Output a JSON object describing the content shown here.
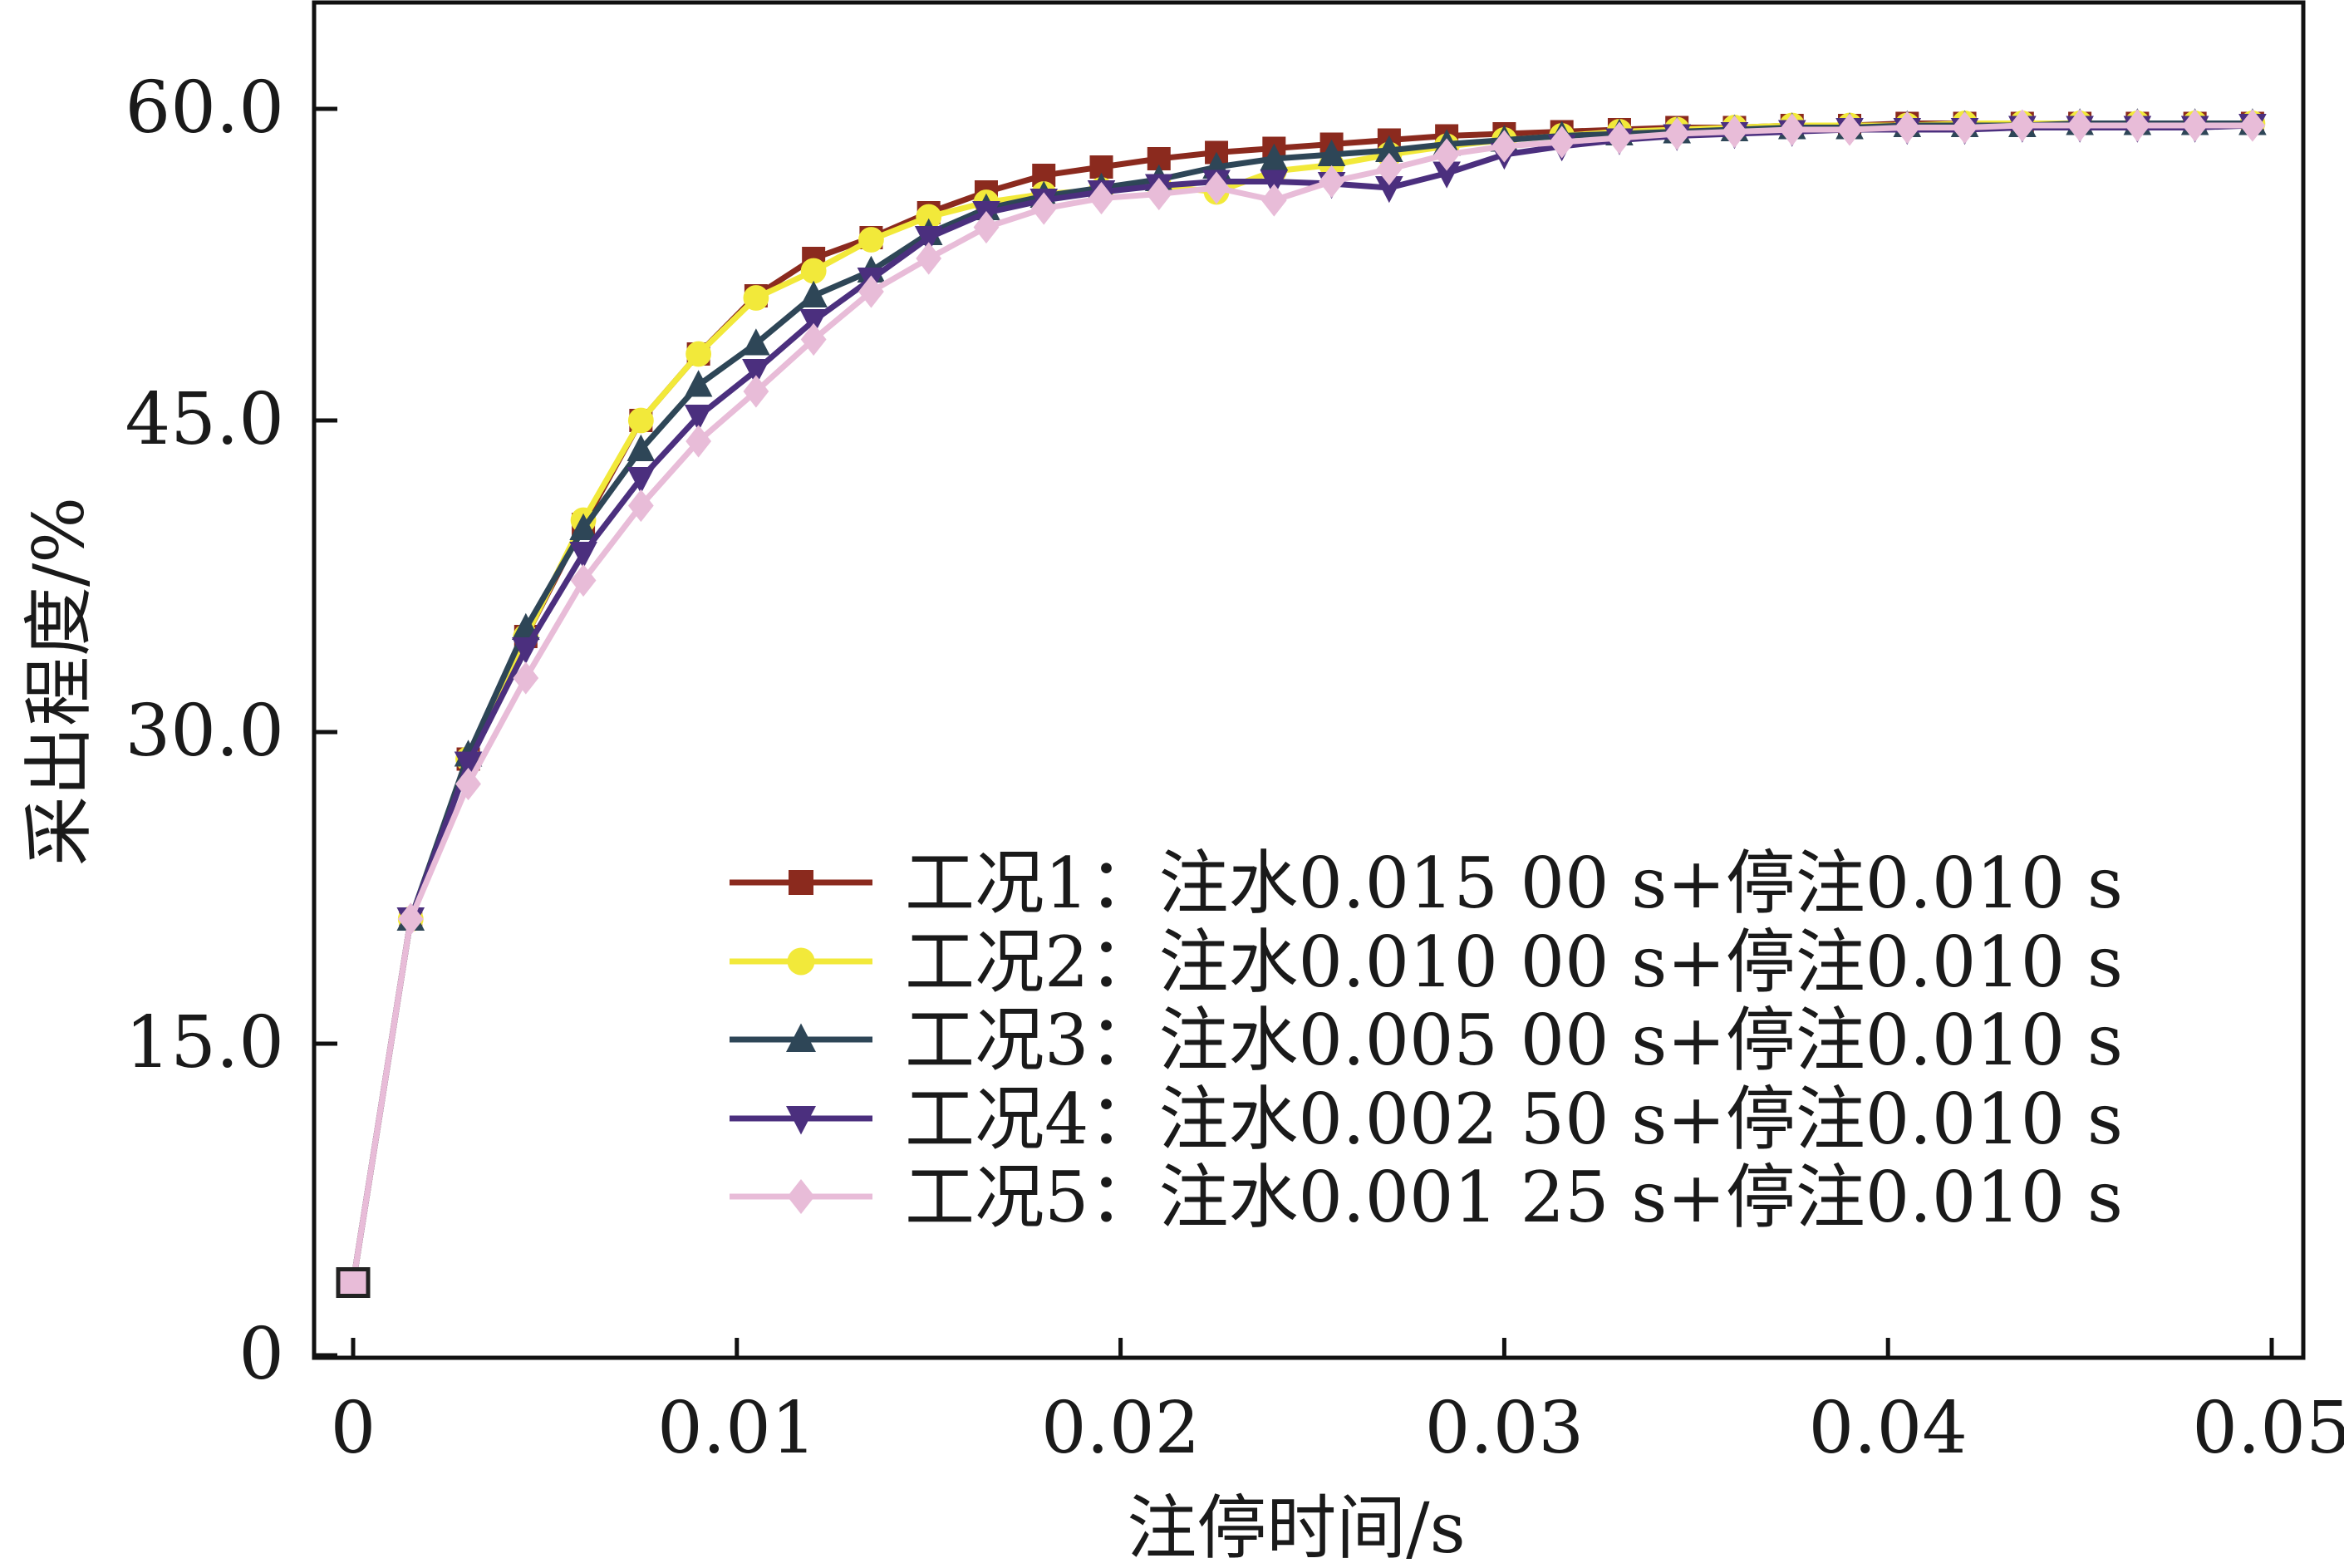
{
  "chart_data": {
    "type": "line",
    "title": "",
    "xlabel": "注停时间/s",
    "ylabel": "采出程度/%",
    "xlim": [
      -0.001,
      0.0505
    ],
    "ylim": [
      0,
      65.2
    ],
    "xticks": [
      0,
      0.01,
      0.02,
      0.03,
      0.04,
      0.05
    ],
    "xtick_labels": [
      "0",
      "0.01",
      "0.02",
      "0.03",
      "0.04",
      "0.05"
    ],
    "yticks": [
      0,
      15,
      30,
      45,
      60
    ],
    "ytick_labels": [
      "0",
      "15.0",
      "30.0",
      "45.0",
      "60.0"
    ],
    "grid": false,
    "legend_position": "bottom-right",
    "x": [
      0,
      0.0015,
      0.003,
      0.0045,
      0.006,
      0.0075,
      0.009,
      0.0105,
      0.012,
      0.0135,
      0.015,
      0.0165,
      0.018,
      0.0195,
      0.021,
      0.0225,
      0.024,
      0.0255,
      0.027,
      0.0285,
      0.03,
      0.0315,
      0.033,
      0.0345,
      0.036,
      0.0375,
      0.039,
      0.0405,
      0.042,
      0.0435,
      0.045,
      0.0465,
      0.048,
      0.0495
    ],
    "series": [
      {
        "name": "工况1：注水0.015 00 s+停注0.010 s",
        "color": "#8b2a1e",
        "marker": "square",
        "values": [
          3.5,
          21,
          28.7,
          34.6,
          40,
          45,
          48.2,
          51,
          52.8,
          53.8,
          55,
          56,
          56.8,
          57.2,
          57.6,
          57.9,
          58.1,
          58.3,
          58.5,
          58.7,
          58.8,
          58.9,
          59.0,
          59.1,
          59.1,
          59.2,
          59.2,
          59.3,
          59.3,
          59.3,
          59.3,
          59.3,
          59.3,
          59.3
        ]
      },
      {
        "name": "工况2：注水0.010 00 s+停注0.010 s",
        "color": "#f2e93a",
        "marker": "circle",
        "values": [
          3.5,
          21,
          28.7,
          34.6,
          40.2,
          45,
          48.2,
          50.9,
          52.2,
          53.7,
          54.8,
          55.5,
          55.9,
          56.1,
          56.3,
          56.0,
          57.0,
          57.3,
          57.8,
          58.2,
          58.5,
          58.7,
          58.9,
          59.0,
          59.1,
          59.2,
          59.2,
          59.2,
          59.3,
          59.3,
          59.3,
          59.3,
          59.3,
          59.3
        ]
      },
      {
        "name": "工况3：注水0.005 00 s+停注0.010 s",
        "color": "#2e4657",
        "marker": "triangle-up",
        "values": [
          3.5,
          21,
          28.9,
          35,
          39.8,
          43.6,
          46.7,
          48.7,
          51,
          52.2,
          54,
          55.2,
          55.8,
          56.2,
          56.6,
          57.2,
          57.6,
          57.8,
          58.0,
          58.3,
          58.5,
          58.7,
          58.8,
          58.9,
          59.0,
          59.1,
          59.1,
          59.2,
          59.2,
          59.2,
          59.3,
          59.3,
          59.3,
          59.3
        ]
      },
      {
        "name": "工况4：注水0.002 50 s+停注0.010 s",
        "color": "#4b2f7e",
        "marker": "triangle-down",
        "values": [
          3.5,
          21,
          28.5,
          34,
          38.6,
          42.2,
          45.2,
          47.4,
          49.8,
          51.8,
          53.8,
          55,
          55.6,
          56,
          56.3,
          56.5,
          56.5,
          56.4,
          56.2,
          56.9,
          57.8,
          58.2,
          58.5,
          58.7,
          58.8,
          58.9,
          59.0,
          59.0,
          59.0,
          59.1,
          59.1,
          59.1,
          59.1,
          59.2
        ]
      },
      {
        "name": "工况5：注水0.001 25 s+停注0.010 s",
        "color": "#e8bcd8",
        "marker": "diamond",
        "values": [
          3.5,
          21,
          27.5,
          32.6,
          37.3,
          40.9,
          44,
          46.4,
          48.9,
          51.2,
          52.8,
          54.3,
          55.2,
          55.7,
          55.9,
          56.2,
          55.6,
          56.5,
          57.1,
          57.8,
          58.2,
          58.4,
          58.6,
          58.8,
          58.9,
          59.0,
          59.0,
          59.1,
          59.1,
          59.2,
          59.2,
          59.2,
          59.2,
          59.2
        ]
      }
    ]
  }
}
